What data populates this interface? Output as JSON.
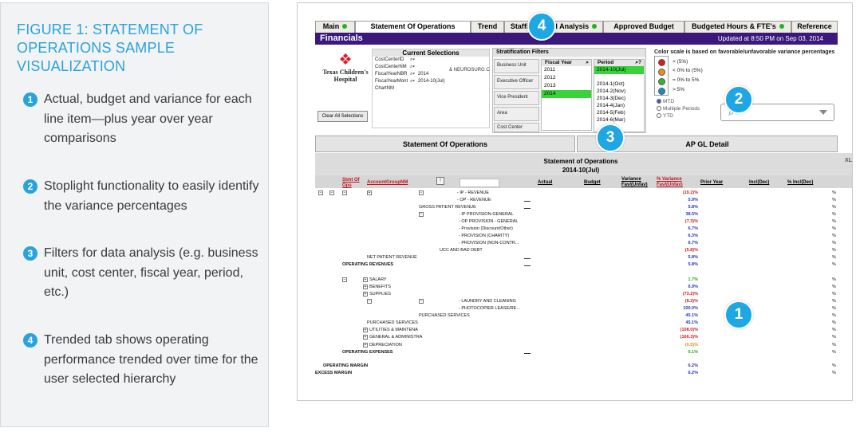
{
  "figure": {
    "title": "FIGURE 1: STATEMENT OF OPERATIONS SAMPLE VISUALIZATION",
    "points": [
      {
        "num": "1",
        "text": "Actual, budget and variance for each line item—plus year over year comparisons"
      },
      {
        "num": "2",
        "text": "Stoplight functionality to easily identify the variance percentages"
      },
      {
        "num": "3",
        "text": "Filters for data analysis (e.g. business unit, cost center, fiscal year, period, etc.)"
      },
      {
        "num": "4",
        "text": "Trended tab shows operating performance trended over time for the user selected hierarchy"
      }
    ]
  },
  "app": {
    "tabs": [
      "Main",
      "Statement Of Operations",
      "Trend",
      "Staffing Level Analysis",
      "Approved Budget",
      "Budgeted Hours & FTE's",
      "Reference"
    ],
    "title": "Financials",
    "updated": "Updated at 8:50 PM on Sep 03, 2014",
    "logo_line1": "Texas Children's",
    "logo_line2": "Hospital",
    "clear_label": "Clear All Selections",
    "current_selections": {
      "title": "Current Selections",
      "rows": [
        {
          "field": "CostCenterID",
          "value": ""
        },
        {
          "field": "CostCenterNM",
          "value": ""
        },
        {
          "field": "FiscalYearNBR",
          "value": "2014"
        },
        {
          "field": "FiscalYearMont",
          "value": "2014-10(Jul)"
        },
        {
          "field": "ChartNM",
          "value": ""
        }
      ],
      "extra": "& NEUROSURG C"
    },
    "strat": {
      "title": "Stratification Filters",
      "categories": [
        "Business Unit",
        "Executive Officer",
        "Vice President",
        "Area",
        "Cost Center"
      ],
      "fiscal_header": "Fiscal Year",
      "fiscal_years": [
        "2011",
        "2012",
        "2013",
        "2014"
      ],
      "fiscal_selected": "2014",
      "period_header": "Period",
      "periods": [
        "2014-10(Jul)",
        "",
        "2014-1(Oct)",
        "2014-2(Nov)",
        "2014-3(Dec)",
        "2014-4(Jan)",
        "2014-5(Feb)",
        "2014-6(Mar)"
      ],
      "period_selected": "2014-10(Jul)"
    },
    "color_scale_note": "Color scale is based on favorable/unfavorable variance percentages",
    "legend": [
      {
        "label": "> (5%)",
        "color": "#d81e1e"
      },
      {
        "label": "< 0% to (5%)",
        "color": "#f08c1a"
      },
      {
        "label": "= 0% to 5%",
        "color": "#2fb82f"
      },
      {
        "label": "> 5%",
        "color": "#1e8ac8"
      }
    ],
    "radios": [
      "MTD",
      "Multiple Periods",
      "YTD"
    ],
    "big_tabs": [
      "Statement Of Operations",
      "AP GL Detail"
    ],
    "report": {
      "title": "Statement of Operations",
      "subtitle": "2014-10(Jul)",
      "xl": "XL",
      "headers": {
        "stmt": "Stmt Of Ops",
        "group": "AccountGroupNM",
        "actual": "Actual",
        "budget": "Budget",
        "variance": "Variance Fav/(Unfav)",
        "pct_variance": "% Variance Fav/(Unfav)",
        "prior": "Prior Year",
        "inc": "Inc/(Dec)",
        "pct_inc": "% Inc/(Dec)"
      },
      "rows": [
        {
          "label": "- IP - REVENUE",
          "value": "(19.2)%",
          "color": "red",
          "pct": "%"
        },
        {
          "label": "- OP - REVENUE",
          "value": "5.9%",
          "color": "blue",
          "pct": "%"
        },
        {
          "label": "GROSS PATIENT REVENUE",
          "value": "5.8%",
          "color": "blue",
          "pct": "%"
        },
        {
          "label": "- IP PROVISION-GENERAL",
          "value": "38.5%",
          "color": "blue",
          "pct": "%"
        },
        {
          "label": "- OP PROVISION - GENERAL",
          "value": "(7.3)%",
          "color": "red",
          "pct": "%"
        },
        {
          "label": "- Provision (Discount/Other)",
          "value": "6.7%",
          "color": "blue",
          "pct": "%"
        },
        {
          "label": "- PROVISION (CHARITY)",
          "value": "6.3%",
          "color": "blue",
          "pct": "%"
        },
        {
          "label": "- PROVISION (NON-CONTR...",
          "value": "6.7%",
          "color": "blue",
          "pct": "%"
        },
        {
          "label": "UCC AND BAD DEBT",
          "value": "(5.8)%",
          "color": "red",
          "pct": "%"
        },
        {
          "label": "NET PATIENT REVENUE",
          "value": "5.8%",
          "color": "blue",
          "pct": "%"
        },
        {
          "label": "OPERATING REVENUES",
          "value": "5.8%",
          "color": "blue",
          "pct": "%"
        },
        {
          "label": "SALARY",
          "value": "1.7%",
          "color": "green",
          "pct": "%"
        },
        {
          "label": "BENEFITS",
          "value": "6.9%",
          "color": "blue",
          "pct": "%"
        },
        {
          "label": "SUPPLIES",
          "value": "(73.2)%",
          "color": "red",
          "pct": "%"
        },
        {
          "label": "- LAUNDRY AND CLEANING",
          "value": "(8.2)%",
          "color": "red",
          "pct": "%"
        },
        {
          "label": "- PHOTOCOPIER LEASE/RE...",
          "value": "100.0%",
          "color": "blue",
          "pct": "%"
        },
        {
          "label": "PURCHASED SERVICES",
          "value": "45.1%",
          "color": "blue",
          "pct": "%"
        },
        {
          "label": "PURCHASED SERVICES",
          "value": "45.1%",
          "color": "blue",
          "pct": "%"
        },
        {
          "label": "UTILITIES & MAINTENA",
          "value": "(108.0)%",
          "color": "red",
          "pct": "%"
        },
        {
          "label": "GENERAL & ADMINISTRA",
          "value": "(166.3)%",
          "color": "red",
          "pct": "%"
        },
        {
          "label": "DEPRECIATION",
          "value": "(0.5)%",
          "color": "orange",
          "pct": "%"
        },
        {
          "label": "OPERATING EXPENSES",
          "value": "0.1%",
          "color": "green",
          "pct": "%"
        },
        {
          "label": "OPERATING MARGIN",
          "value": "6.2%",
          "color": "blue",
          "pct": "%"
        },
        {
          "label": "EXCESS MARGIN",
          "value": "6.2%",
          "color": "blue",
          "pct": "%"
        }
      ]
    }
  },
  "callouts": [
    "1",
    "2",
    "3",
    "4"
  ]
}
